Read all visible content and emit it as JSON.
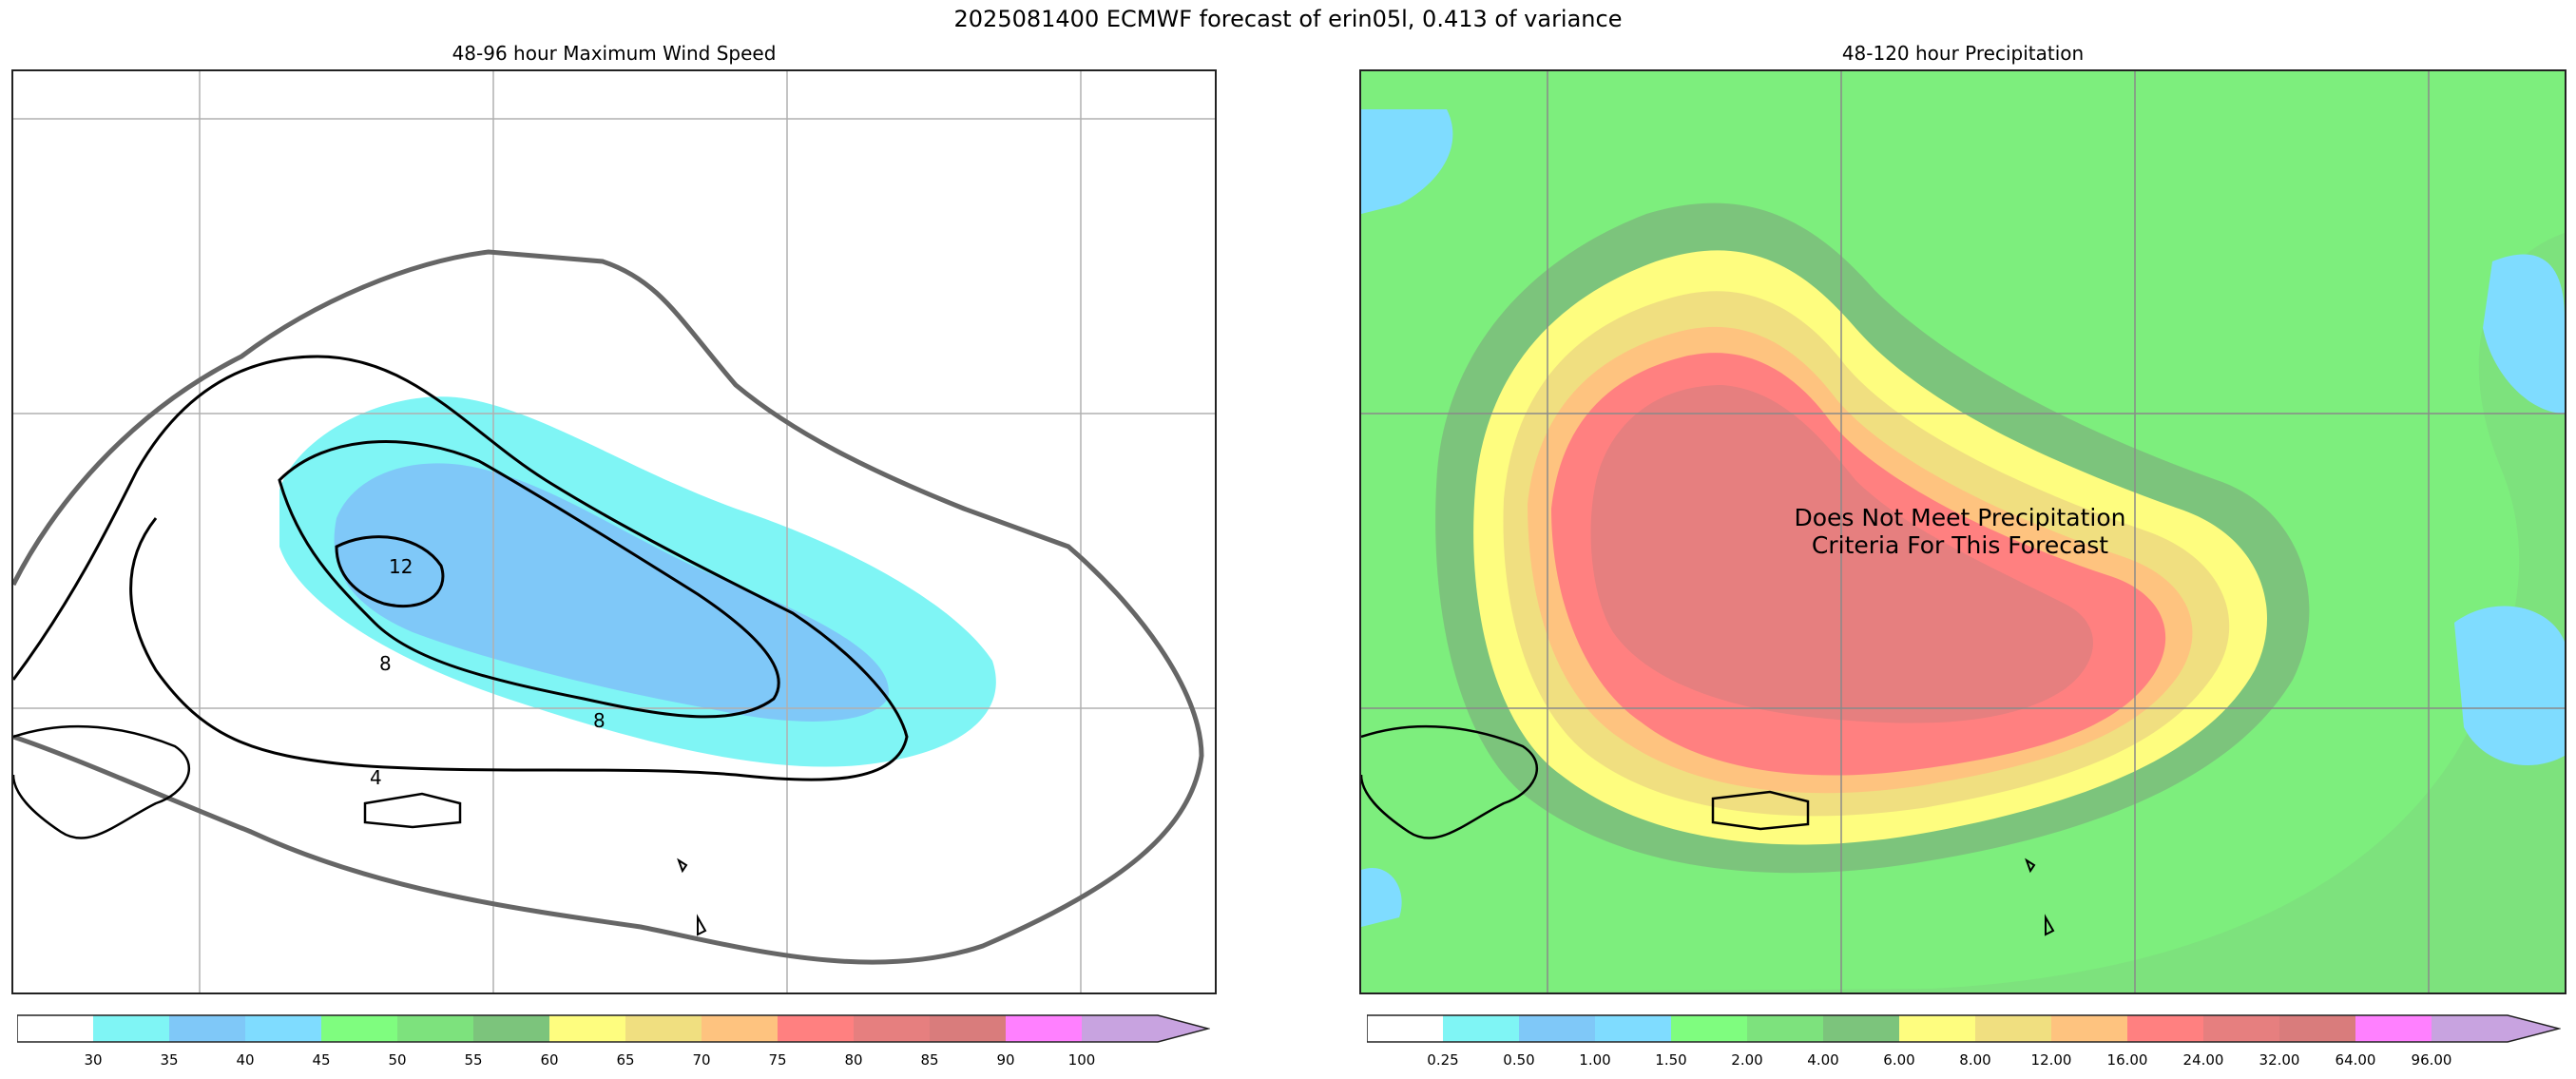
{
  "figure": {
    "suptitle": "2025081400 ECMWF forecast of erin05l, 0.413 of variance"
  },
  "left_panel": {
    "title": "48-96 hour Maximum Wind Speed",
    "contour_labels": [
      "12",
      "8",
      "4",
      "8"
    ],
    "colorbar": {
      "ticks": [
        "30",
        "35",
        "40",
        "45",
        "50",
        "55",
        "60",
        "65",
        "70",
        "75",
        "80",
        "85",
        "90",
        "100"
      ],
      "colors": [
        "#ffffff",
        "#7ff5f5",
        "#7fc8f8",
        "#7fdcff",
        "#7ffd7f",
        "#7de27d",
        "#7cc47c",
        "#fefd7f",
        "#f0df80",
        "#fec37f",
        "#ff8080",
        "#e67f7f",
        "#d97c7c",
        "#ff80ff",
        "#c8a3e0"
      ]
    }
  },
  "right_panel": {
    "title": "48-120 hour Precipitation",
    "note": "Does Not Meet Precipitation\nCriteria For This Forecast",
    "colorbar": {
      "ticks": [
        "0.25",
        "0.50",
        "1.00",
        "1.50",
        "2.00",
        "4.00",
        "6.00",
        "8.00",
        "12.00",
        "16.00",
        "24.00",
        "32.00",
        "64.00",
        "96.00"
      ],
      "colors": [
        "#ffffff",
        "#7ff5f5",
        "#7fc8f8",
        "#7fdcff",
        "#7ffd7f",
        "#7de27d",
        "#7cc47c",
        "#fefd7f",
        "#f0df80",
        "#fec37f",
        "#ff8080",
        "#e67f7f",
        "#d97c7c",
        "#ff80ff",
        "#c8a3e0"
      ]
    }
  }
}
